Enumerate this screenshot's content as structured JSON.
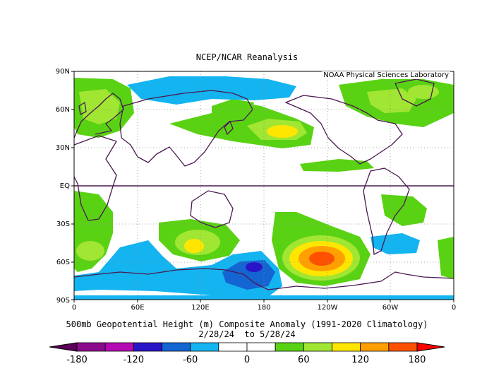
{
  "map": {
    "title": "NCEP/NCAR Reanalysis",
    "credit": "NOAA Physical Sciences Laboratory",
    "lat_ticks": [
      "90N",
      "60N",
      "30N",
      "EQ",
      "30S",
      "60S",
      "90S"
    ],
    "lon_ticks": [
      "0",
      "60E",
      "120E",
      "180",
      "120W",
      "60W",
      "0"
    ],
    "caption_line1": "500mb Geopotential Height (m) Composite Anomaly (1991-2020 Climatology)",
    "caption_line2": "2/28/24  to 5/28/24"
  },
  "colorbar": {
    "labels": [
      "-180",
      "-120",
      "-60",
      "0",
      "60",
      "120",
      "180"
    ],
    "colors": [
      "#8c0a8c",
      "#b40ab4",
      "#2a14c8",
      "#1464d2",
      "#14b4f0",
      "#ffffff",
      "#ffffff",
      "#5ad214",
      "#a0e632",
      "#ffe600",
      "#ffa000",
      "#ff5000"
    ],
    "end_left": "#5a005a",
    "end_right": "#ff0000"
  },
  "anomaly_fields": {
    "colors": {
      "blue_light": "#14b4f0",
      "blue_mid": "#1464d2",
      "blue_dark": "#2a14c8",
      "green": "#5ad214",
      "yellow_green": "#a0e632",
      "yellow": "#ffe600",
      "orange": "#ffa000",
      "red": "#ff5000",
      "coast": "#4a1850"
    }
  }
}
